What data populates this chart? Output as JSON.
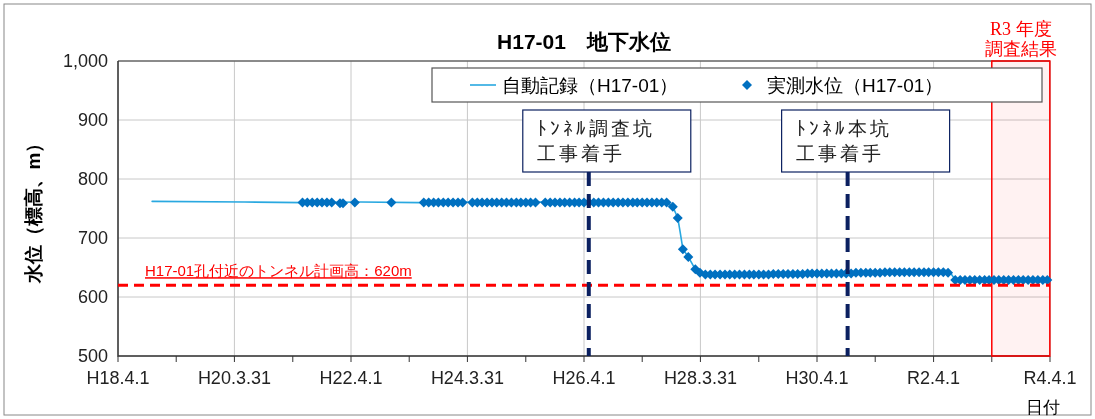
{
  "chart_data": {
    "type": "line",
    "title": "H17-01　地下水位",
    "ylabel": "水位（標高、m）",
    "xlabel": "日付",
    "xlim": [
      "2006-04-01",
      "2022-04-01"
    ],
    "xticks": [
      {
        "value": "2006-04-01",
        "label": "H18.4.1"
      },
      {
        "value": "2007-04-01",
        "label": null
      },
      {
        "value": "2008-03-31",
        "label": "H20.3.31"
      },
      {
        "value": "2009-04-01",
        "label": null
      },
      {
        "value": "2010-04-01",
        "label": "H22.4.1"
      },
      {
        "value": "2011-04-01",
        "label": null
      },
      {
        "value": "2012-03-31",
        "label": "H24.3.31"
      },
      {
        "value": "2013-04-01",
        "label": null
      },
      {
        "value": "2014-04-01",
        "label": "H26.4.1"
      },
      {
        "value": "2015-04-01",
        "label": null
      },
      {
        "value": "2016-03-31",
        "label": "H28.3.31"
      },
      {
        "value": "2017-04-01",
        "label": null
      },
      {
        "value": "2018-04-01",
        "label": "H30.4.1"
      },
      {
        "value": "2019-04-01",
        "label": null
      },
      {
        "value": "2020-04-01",
        "label": "R2.4.1"
      },
      {
        "value": "2021-04-01",
        "label": null
      },
      {
        "value": "2022-04-01",
        "label": "R4.4.1"
      }
    ],
    "ylim": [
      500,
      1000
    ],
    "yticks": [
      500,
      600,
      700,
      800,
      900,
      {
        "value": 1000,
        "label": "1,000"
      }
    ],
    "grid": true,
    "legend": "top right",
    "series": [
      {
        "name": "自動記録（H17-01）",
        "type": "line",
        "color": "#29a8e0",
        "marker": "none",
        "line_style": "solid",
        "x": [
          "2006-11-01",
          "2008-06-01",
          "2009-06-01",
          "2010-06-01",
          "2011-06-01",
          "2012-06-01",
          "2013-06-01",
          "2014-06-01",
          "2015-06-01",
          "2015-09-01",
          "2015-10-10",
          "2015-11-10",
          "2015-11-25",
          "2015-12-12",
          "2016-01-15",
          "2016-02-28",
          "2016-04-15",
          "2016-08-01",
          "2017-06-01",
          "2018-06-01",
          "2019-06-01",
          "2020-06-01",
          "2020-07-15",
          "2020-08-15",
          "2021-06-01",
          "2022-03-20"
        ],
        "values": [
          762,
          761,
          760,
          761,
          760,
          761,
          761,
          761,
          761,
          760,
          753,
          734,
          710,
          681,
          668,
          647,
          640,
          638,
          638,
          640,
          642,
          643,
          641,
          629,
          628,
          629
        ]
      },
      {
        "name": "実測水位（H17-01）",
        "type": "scatter",
        "color": "#0070c0",
        "marker": "diamond",
        "x": [
          "2009-06-01",
          "2009-07-01",
          "2009-08-01",
          "2009-09-01",
          "2009-10-01",
          "2009-11-01",
          "2009-12-01",
          "2010-01-22",
          "2010-02-10",
          "2010-04-25",
          "2010-12-10",
          "2011-07-01",
          "2011-08-01",
          "2011-09-01",
          "2011-10-01",
          "2011-11-01",
          "2011-12-01",
          "2012-01-01",
          "2012-02-01",
          "2012-03-01",
          "2012-05-01",
          "2012-06-01",
          "2012-07-01",
          "2012-08-01",
          "2012-09-01",
          "2012-10-01",
          "2012-11-01",
          "2012-12-01",
          "2013-01-01",
          "2013-02-01",
          "2013-03-01",
          "2013-04-01",
          "2013-05-01",
          "2013-06-01",
          "2013-08-01",
          "2013-09-01",
          "2013-10-01",
          "2013-11-01",
          "2013-12-01",
          "2014-01-01",
          "2014-02-01",
          "2014-03-01",
          "2014-04-01",
          "2014-05-01",
          "2014-06-01",
          "2014-07-01",
          "2014-08-01",
          "2014-09-01",
          "2014-10-01",
          "2014-11-01",
          "2014-12-01",
          "2015-01-01",
          "2015-02-01",
          "2015-03-01",
          "2015-04-01",
          "2015-05-01",
          "2015-06-01",
          "2015-07-01",
          "2015-08-01",
          "2015-09-01",
          "2015-10-10",
          "2015-11-10",
          "2015-12-12",
          "2016-01-15",
          "2016-02-28",
          "2016-03-28",
          "2016-05-01",
          "2016-06-01",
          "2016-07-01",
          "2016-08-01",
          "2016-09-01",
          "2016-10-01",
          "2016-11-01",
          "2016-12-01",
          "2017-01-01",
          "2017-02-01",
          "2017-03-01",
          "2017-04-01",
          "2017-05-01",
          "2017-06-01",
          "2017-07-01",
          "2017-08-01",
          "2017-09-01",
          "2017-10-01",
          "2017-11-01",
          "2017-12-01",
          "2018-01-01",
          "2018-02-01",
          "2018-03-01",
          "2018-04-01",
          "2018-05-01",
          "2018-06-01",
          "2018-07-01",
          "2018-08-01",
          "2018-09-01",
          "2018-10-01",
          "2018-11-01",
          "2018-12-01",
          "2019-01-01",
          "2019-02-01",
          "2019-03-01",
          "2019-04-01",
          "2019-05-01",
          "2019-06-01",
          "2019-07-01",
          "2019-08-01",
          "2019-09-01",
          "2019-10-01",
          "2019-11-01",
          "2019-12-01",
          "2020-01-01",
          "2020-02-01",
          "2020-03-01",
          "2020-04-01",
          "2020-05-01",
          "2020-06-01",
          "2020-07-01",
          "2020-08-15",
          "2020-09-15",
          "2020-10-15",
          "2020-11-15",
          "2020-12-15",
          "2021-01-15",
          "2021-02-15",
          "2021-03-15",
          "2021-04-15",
          "2021-05-15",
          "2021-06-15",
          "2021-07-15",
          "2021-08-15",
          "2021-09-15",
          "2021-10-15",
          "2021-11-15",
          "2021-12-15",
          "2022-01-15",
          "2022-02-15",
          "2022-03-15"
        ],
        "values": [
          760,
          760,
          760,
          760,
          760,
          760,
          760,
          759,
          759,
          760,
          760,
          760,
          760,
          760,
          760,
          760,
          760,
          760,
          760,
          760,
          760,
          760,
          760,
          760,
          760,
          760,
          760,
          760,
          760,
          760,
          760,
          760,
          760,
          760,
          760,
          760,
          760,
          760,
          760,
          760,
          760,
          760,
          760,
          760,
          760,
          760,
          760,
          760,
          760,
          760,
          760,
          760,
          760,
          760,
          760,
          760,
          760,
          760,
          760,
          760,
          753,
          734,
          681,
          668,
          647,
          641,
          638,
          638,
          638,
          638,
          638,
          638,
          638,
          638,
          638,
          638,
          638,
          638,
          638,
          638,
          639,
          639,
          639,
          639,
          639,
          639,
          639,
          640,
          640,
          640,
          640,
          640,
          640,
          640,
          640,
          640,
          640,
          641,
          641,
          641,
          641,
          641,
          641,
          642,
          642,
          642,
          642,
          642,
          642,
          642,
          642,
          642,
          642,
          642,
          642,
          642,
          641,
          629,
          629,
          629,
          629,
          629,
          629,
          629,
          629,
          629,
          629,
          629,
          629,
          629,
          629,
          629,
          629,
          629,
          629,
          629,
          629
        ]
      }
    ],
    "ref_lines": [
      {
        "axis": "y",
        "value": 620,
        "label": "H17-01孔付近のトンネル計画高：620m",
        "color": "#ff0000",
        "line_style": "dashed"
      },
      {
        "axis": "x",
        "value": "2014-05-01",
        "label": [
          "ﾄﾝﾈﾙ調査坑",
          "工事着手"
        ],
        "color": "#0b2060",
        "line_style": "dashed"
      },
      {
        "axis": "x",
        "value": "2018-10-10",
        "label": [
          "ﾄﾝﾈﾙ本坑",
          "工事着手"
        ],
        "color": "#0b2060",
        "line_style": "dashed"
      }
    ],
    "bands": [
      {
        "axis": "x",
        "from": "2021-04-01",
        "to": "2022-03-31",
        "label": [
          "R3 年度",
          "調査結果"
        ],
        "color": "#ff0000"
      }
    ]
  }
}
